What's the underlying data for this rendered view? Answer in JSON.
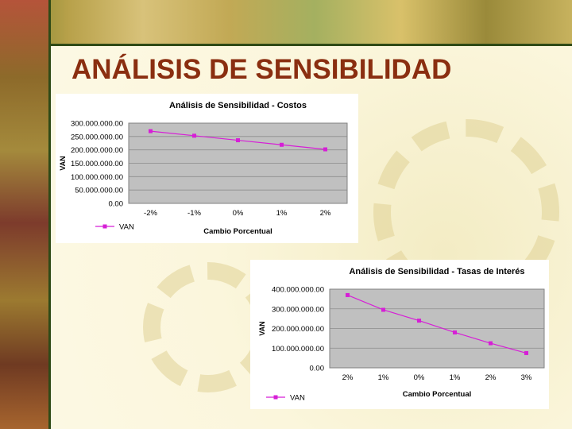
{
  "slide": {
    "title": "ANÁLISIS DE SENSIBILIDAD"
  },
  "colors": {
    "title": "#8a2e10",
    "series": "#d61fd6",
    "plot_area": "#c0c0c0"
  },
  "chart_data": [
    {
      "type": "line",
      "title": "Análisis de Sensibilidad - Costos",
      "xlabel": "Cambio Porcentual",
      "ylabel": "VAN",
      "categories": [
        "-2%",
        "-1%",
        "0%",
        "1%",
        "2%"
      ],
      "series": [
        {
          "name": "VAN",
          "values": [
            270000000,
            253000000,
            236000000,
            219000000,
            202000000
          ]
        }
      ],
      "yticks": [
        "300.000.000.00",
        "250.000.000.00",
        "200.000.000.00",
        "150.000.000.00",
        "100.000.000.00",
        "50.000.000.00",
        "0.00"
      ],
      "ylim": [
        0,
        300000000
      ],
      "grid": true,
      "legend": "bottom-left"
    },
    {
      "type": "line",
      "title": "Análisis de Sensibilidad - Tasas de Interés",
      "xlabel": "Cambio Porcentual",
      "ylabel": "VAN",
      "categories": [
        "2%",
        "1%",
        "0%",
        "1%",
        "2%",
        "3%"
      ],
      "series": [
        {
          "name": "VAN",
          "values": [
            370000000,
            295000000,
            240000000,
            180000000,
            125000000,
            75000000
          ]
        }
      ],
      "yticks": [
        "400.000.000.00",
        "300.000.000.00",
        "200.000.000.00",
        "100.000.000.00",
        "0.00"
      ],
      "ylim": [
        0,
        400000000
      ],
      "grid": true,
      "legend": "bottom-left"
    }
  ]
}
